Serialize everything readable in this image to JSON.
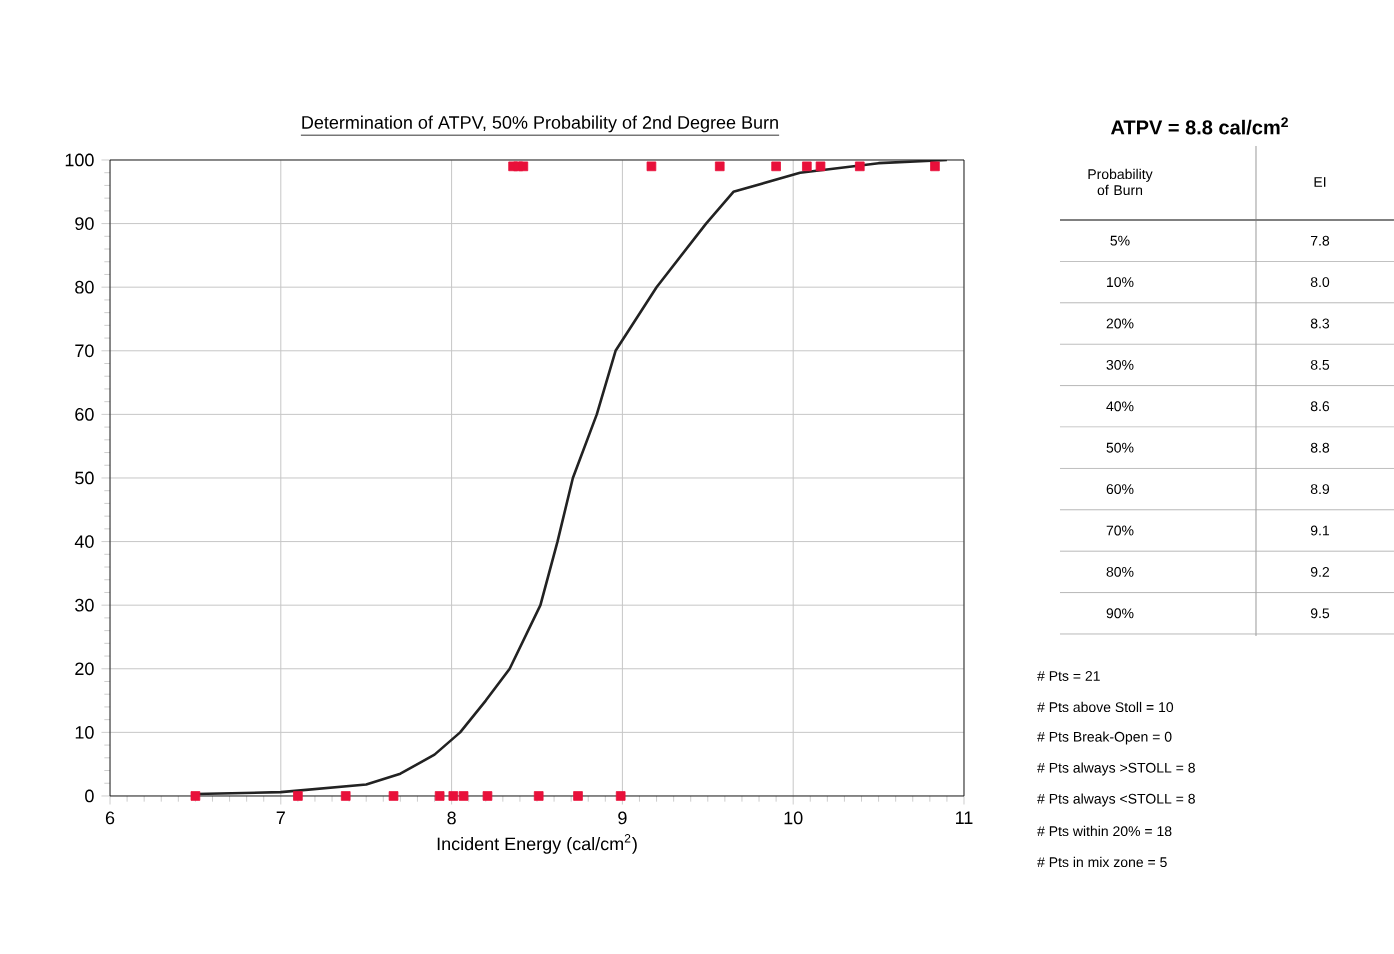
{
  "chart_data": {
    "type": "scatter",
    "title": "Determination of ATPV, 50% Probability of 2nd Degree Burn",
    "xlabel": "Incident Energy (cal/cm$^{2}$)",
    "xlim": [
      6,
      11
    ],
    "xticks": [
      6,
      7,
      8,
      9,
      10,
      11
    ],
    "ylim": [
      0,
      100
    ],
    "yticks": [
      0,
      10,
      20,
      30,
      40,
      50,
      60,
      70,
      80,
      90,
      100
    ],
    "grid": true,
    "marker": "square",
    "series": [
      {
        "color": "#e8103a",
        "x": [
          6.5,
          7.1,
          7.38,
          7.66,
          7.93,
          8.01,
          8.07,
          8.21,
          8.51,
          8.74,
          8.99,
          8.36,
          8.39,
          8.42,
          9.17,
          9.57,
          9.9,
          10.08,
          10.16,
          10.39,
          10.83
        ],
        "values": [
          0,
          0,
          0,
          0,
          0,
          0,
          0,
          0,
          0,
          0,
          0,
          99,
          99,
          99,
          99,
          99,
          99,
          99,
          99,
          99,
          99
        ]
      },
      {
        "type": "line",
        "color": "#222222",
        "marker": "none",
        "x": [
          6.5,
          7.0,
          7.5,
          7.7,
          7.9,
          8.05,
          8.2,
          8.34,
          8.52,
          8.62,
          8.71,
          8.85,
          8.96,
          9.2,
          9.49,
          9.65,
          10.04,
          10.5,
          10.9
        ],
        "values": [
          0.3,
          0.6,
          1.8,
          3.5,
          6.5,
          10,
          15,
          20,
          30,
          40,
          50,
          60,
          70,
          80,
          90,
          95,
          98,
          99.5,
          100
        ]
      }
    ],
    "annotations": [
      "ATPV = 8.8 cal/cm$^{2}$",
      "Probability of Burn",
      "EI",
      "5%",
      "7.8",
      "10%",
      "8.0",
      "20%",
      "8.3",
      "30%",
      "8.5",
      "40%",
      "8.6",
      "50%",
      "8.8",
      "60%",
      "8.9",
      "70%",
      "9.1",
      "80%",
      "9.2",
      "90%",
      "9.5",
      "# Pts =  21",
      "# Pts above Stoll =  10",
      "# Pts Break-Open =  0",
      "# Pts always >STOLL =  8",
      "# Pts always <STOLL =  8",
      "# Pts within 20% =  18",
      "# Pts in mix zone =  5"
    ]
  }
}
